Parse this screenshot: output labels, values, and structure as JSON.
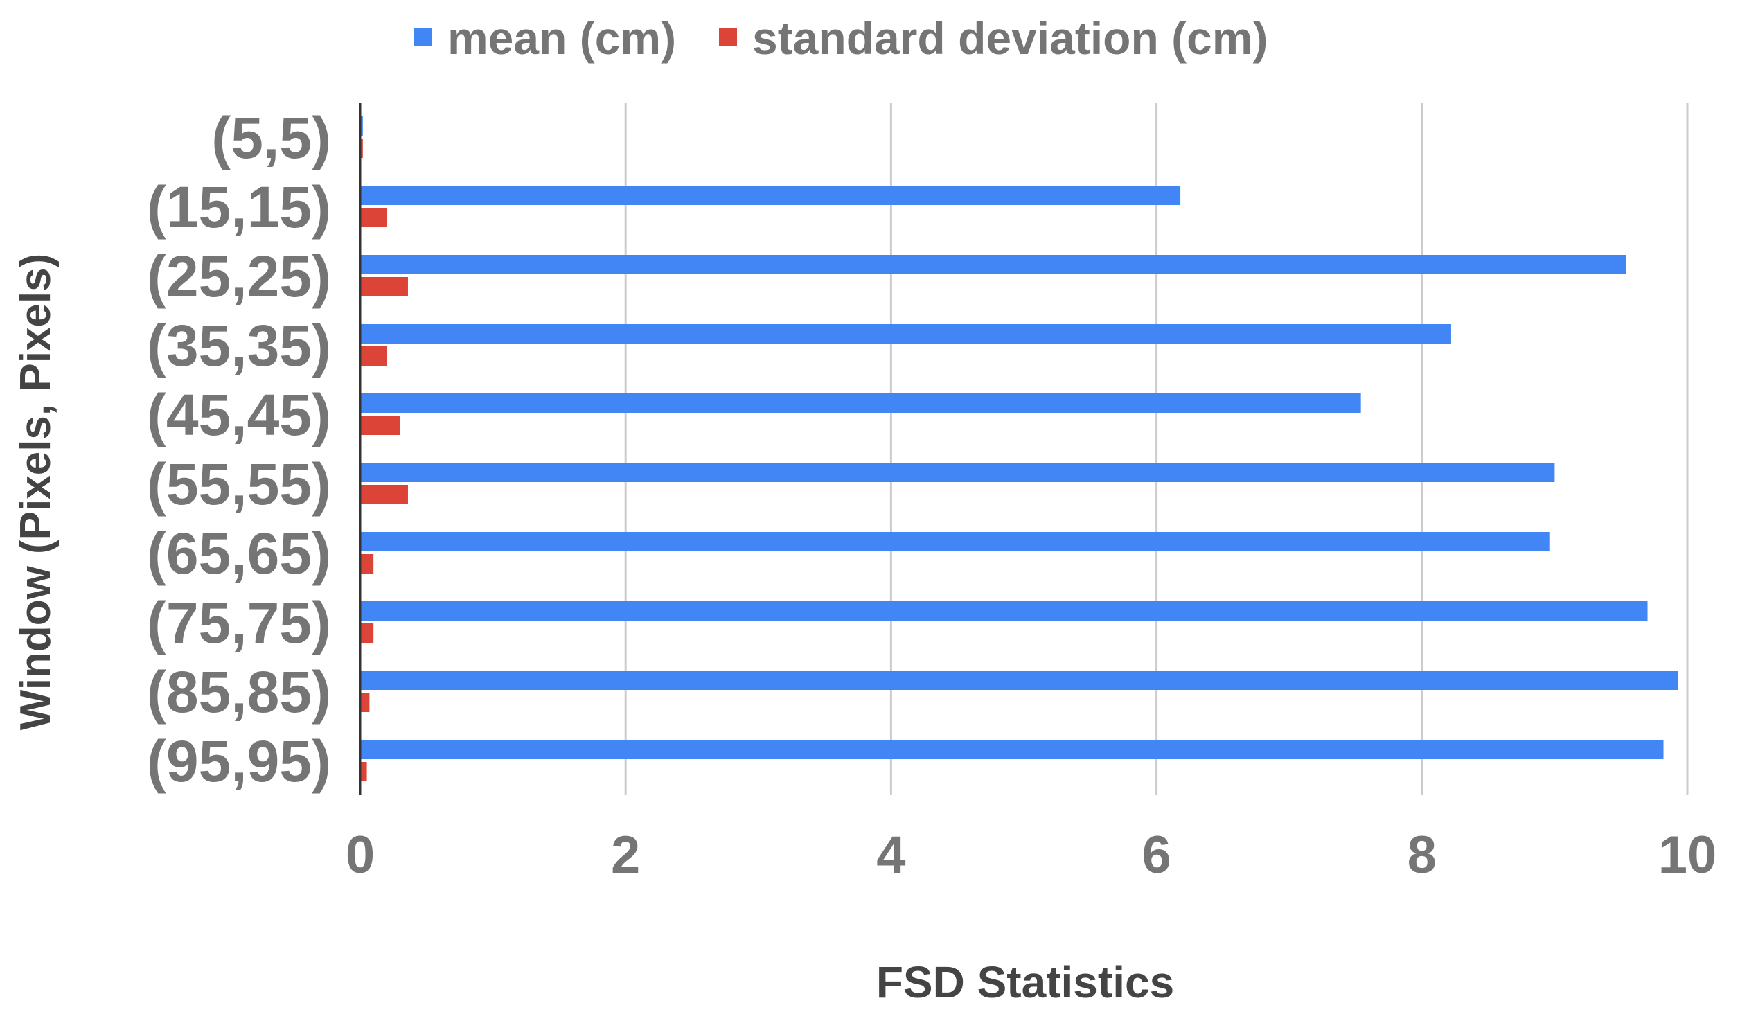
{
  "chart_data": {
    "type": "bar",
    "orientation": "horizontal",
    "title": "",
    "xlabel": "FSD Statistics",
    "ylabel": "Window (Pixels, Pixels)",
    "categories": [
      "(5,5)",
      "(15,15)",
      "(25,25)",
      "(35,35)",
      "(45,45)",
      "(55,55)",
      "(65,65)",
      "(75,75)",
      "(85,85)",
      "(95,95)"
    ],
    "series": [
      {
        "name": "mean (cm)",
        "color": "#4285f4",
        "values": [
          0.02,
          6.18,
          9.54,
          8.22,
          7.54,
          9.0,
          8.96,
          9.7,
          9.93,
          9.82
        ]
      },
      {
        "name": "standard deviation (cm)",
        "color": "#db4437",
        "values": [
          0.02,
          0.2,
          0.36,
          0.2,
          0.3,
          0.36,
          0.1,
          0.1,
          0.07,
          0.05
        ]
      }
    ],
    "xlim": [
      0,
      10
    ],
    "xticks": [
      "0",
      "2",
      "4",
      "6",
      "8",
      "10"
    ],
    "grid": true,
    "legend": "top-center"
  }
}
